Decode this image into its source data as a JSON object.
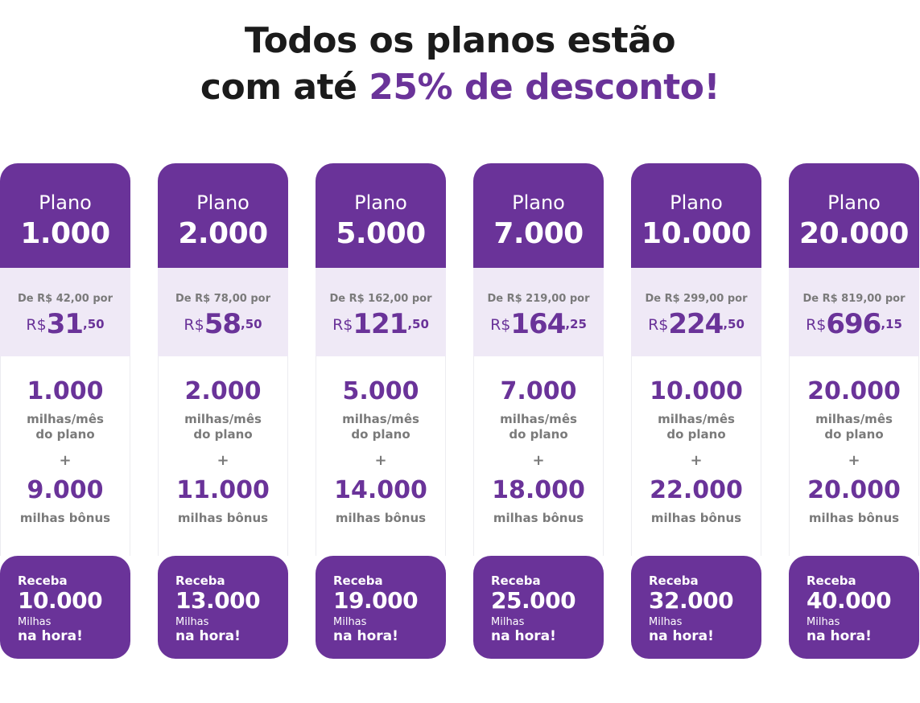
{
  "headline": {
    "line1": "Todos os planos estão",
    "line2_prefix": "com até ",
    "line2_accent": "25% de desconto!"
  },
  "colors": {
    "brand_purple": "#6a3399",
    "light_band": "#efe9f6",
    "muted_text": "#7a7a7a"
  },
  "plans": [
    {
      "plan_word": "Plano",
      "plan_number": "1.000",
      "from_text": "De R$ 42,00 por",
      "currency": "R$",
      "price_int": "31",
      "price_cents": ",50",
      "base_miles": "1.000",
      "per_month": "milhas/mês",
      "of_plan": "do plano",
      "plus": "+",
      "bonus_miles": "9.000",
      "bonus_label": "milhas bônus",
      "receive": "Receba",
      "total_miles": "10.000",
      "miles_word": "Milhas",
      "now": "na hora!"
    },
    {
      "plan_word": "Plano",
      "plan_number": "2.000",
      "from_text": "De R$ 78,00 por",
      "currency": "R$",
      "price_int": "58",
      "price_cents": ",50",
      "base_miles": "2.000",
      "per_month": "milhas/mês",
      "of_plan": "do plano",
      "plus": "+",
      "bonus_miles": "11.000",
      "bonus_label": "milhas bônus",
      "receive": "Receba",
      "total_miles": "13.000",
      "miles_word": "Milhas",
      "now": "na hora!"
    },
    {
      "plan_word": "Plano",
      "plan_number": "5.000",
      "from_text": "De R$ 162,00 por",
      "currency": "R$",
      "price_int": "121",
      "price_cents": ",50",
      "base_miles": "5.000",
      "per_month": "milhas/mês",
      "of_plan": "do plano",
      "plus": "+",
      "bonus_miles": "14.000",
      "bonus_label": "milhas bônus",
      "receive": "Receba",
      "total_miles": "19.000",
      "miles_word": "Milhas",
      "now": "na hora!"
    },
    {
      "plan_word": "Plano",
      "plan_number": "7.000",
      "from_text": "De R$ 219,00 por",
      "currency": "R$",
      "price_int": "164",
      "price_cents": ",25",
      "base_miles": "7.000",
      "per_month": "milhas/mês",
      "of_plan": "do plano",
      "plus": "+",
      "bonus_miles": "18.000",
      "bonus_label": "milhas bônus",
      "receive": "Receba",
      "total_miles": "25.000",
      "miles_word": "Milhas",
      "now": "na hora!"
    },
    {
      "plan_word": "Plano",
      "plan_number": "10.000",
      "from_text": "De R$ 299,00 por",
      "currency": "R$",
      "price_int": "224",
      "price_cents": ",50",
      "base_miles": "10.000",
      "per_month": "milhas/mês",
      "of_plan": "do plano",
      "plus": "+",
      "bonus_miles": "22.000",
      "bonus_label": "milhas bônus",
      "receive": "Receba",
      "total_miles": "32.000",
      "miles_word": "Milhas",
      "now": "na hora!"
    },
    {
      "plan_word": "Plano",
      "plan_number": "20.000",
      "from_text": "De R$ 819,00 por",
      "currency": "R$",
      "price_int": "696",
      "price_cents": ",15",
      "base_miles": "20.000",
      "per_month": "milhas/mês",
      "of_plan": "do plano",
      "plus": "+",
      "bonus_miles": "20.000",
      "bonus_label": "milhas bônus",
      "receive": "Receba",
      "total_miles": "40.000",
      "miles_word": "Milhas",
      "now": "na hora!"
    }
  ]
}
